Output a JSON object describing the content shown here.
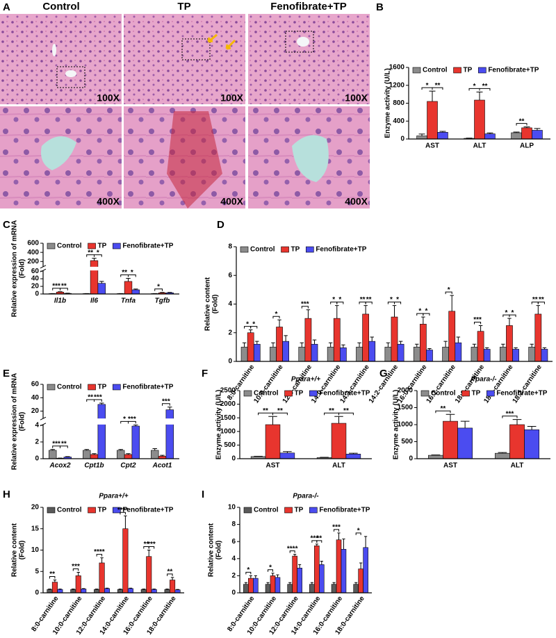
{
  "panel_a": {
    "letter": "A",
    "columns": [
      "Control",
      "TP",
      "Fenofibrate+TP"
    ],
    "magnifications": [
      "100X",
      "400X"
    ]
  },
  "chart_data": [
    {
      "type": "bar",
      "panel": "B",
      "ylabel": [
        "Enzyme activity (U/L)"
      ],
      "categories": [
        "AST",
        "ALT",
        "ALP"
      ],
      "series": [
        {
          "name": "Control",
          "color": "#8c8c8c",
          "values": [
            70,
            15,
            140
          ],
          "errors": [
            40,
            5,
            15
          ]
        },
        {
          "name": "TP",
          "color": "#e8352e",
          "values": [
            840,
            870,
            250
          ],
          "errors": [
            230,
            180,
            20
          ]
        },
        {
          "name": "Fenofibrate+TP",
          "color": "#4b4cf0",
          "values": [
            150,
            115,
            195
          ],
          "errors": [
            20,
            20,
            40
          ]
        }
      ],
      "ylim": [
        0,
        1600
      ],
      "yticks": [
        0,
        400,
        800,
        1200,
        1600
      ],
      "annotations": [
        {
          "text": "*",
          "category": 0,
          "pair": [
            0,
            1
          ]
        },
        {
          "text": "**",
          "category": 0,
          "pair": [
            1,
            2
          ]
        },
        {
          "text": "*",
          "category": 1,
          "pair": [
            0,
            1
          ]
        },
        {
          "text": "**",
          "category": 1,
          "pair": [
            1,
            2
          ]
        },
        {
          "text": "**",
          "category": 2,
          "pair": [
            0,
            1
          ]
        }
      ]
    },
    {
      "type": "bar",
      "panel": "C",
      "ylabel": [
        "Relative expression of mRNA",
        "(Fold)"
      ],
      "italic_categories": true,
      "categories": [
        "Il1b",
        "Il6",
        "Tnfa",
        "Tgfb"
      ],
      "series": [
        {
          "name": "Control",
          "color": "#8c8c8c",
          "values": [
            1,
            1,
            1,
            1
          ],
          "errors": [
            0.2,
            0.2,
            0.2,
            0.2
          ]
        },
        {
          "name": "TP",
          "color": "#e8352e",
          "values": [
            5,
            220,
            33,
            3
          ],
          "errors": [
            1,
            50,
            8,
            1
          ]
        },
        {
          "name": "Fenofibrate+TP",
          "color": "#4b4cf0",
          "values": [
            1.5,
            28,
            11,
            3
          ],
          "errors": [
            0.5,
            5,
            2,
            1
          ]
        }
      ],
      "ylim": [
        0,
        600
      ],
      "ybreak": [
        60,
        100
      ],
      "yticks": [
        0,
        20,
        40,
        60,
        200,
        400,
        600
      ],
      "annotations": [
        {
          "text": "***",
          "category": 0,
          "pair": [
            0,
            1
          ]
        },
        {
          "text": "**",
          "category": 0,
          "pair": [
            1,
            2
          ]
        },
        {
          "text": "**",
          "category": 1,
          "pair": [
            0,
            1
          ]
        },
        {
          "text": "*",
          "category": 1,
          "pair": [
            1,
            2
          ]
        },
        {
          "text": "**",
          "category": 2,
          "pair": [
            0,
            1
          ]
        },
        {
          "text": "*",
          "category": 2,
          "pair": [
            1,
            2
          ]
        },
        {
          "text": "*",
          "category": 3,
          "pair": [
            0,
            1
          ]
        }
      ]
    },
    {
      "type": "bar",
      "panel": "D",
      "ylabel": [
        "Relative content",
        "(Fold)"
      ],
      "categories": [
        "8:0-carnitine",
        "10:0-carnitine",
        "12:0-carnitine",
        "14:0-carnitine",
        "14:1-carnitine",
        "14:2-carnitine",
        "16:0-carnitine",
        "16:1-carnitine",
        "18:0-carnitine",
        "18:1-carnitine",
        "18:2-carnitine"
      ],
      "series": [
        {
          "name": "Control",
          "color": "#8c8c8c",
          "values": [
            1,
            1,
            1,
            1,
            1,
            1,
            1,
            1,
            1,
            1,
            1
          ],
          "errors": [
            0.3,
            0.3,
            0.3,
            0.3,
            0.3,
            0.3,
            0.2,
            0.4,
            0.2,
            0.2,
            0.2
          ]
        },
        {
          "name": "TP",
          "color": "#e8352e",
          "values": [
            2.0,
            2.4,
            3.0,
            3.0,
            3.3,
            3.1,
            2.6,
            3.5,
            2.1,
            2.5,
            3.3
          ],
          "errors": [
            0.2,
            0.5,
            0.6,
            0.9,
            0.6,
            0.8,
            0.5,
            1.1,
            0.4,
            0.5,
            0.6
          ]
        },
        {
          "name": "Fenofibrate+TP",
          "color": "#4b4cf0",
          "values": [
            1.2,
            1.4,
            1.2,
            0.95,
            1.4,
            1.2,
            0.8,
            1.3,
            0.85,
            0.85,
            0.85
          ],
          "errors": [
            0.2,
            0.4,
            0.3,
            0.2,
            0.3,
            0.2,
            0.1,
            0.4,
            0.1,
            0.1,
            0.1
          ]
        }
      ],
      "ylim": [
        0,
        8
      ],
      "yticks": [
        0,
        2,
        4,
        6,
        8
      ],
      "annotations": [
        {
          "text": "*",
          "category": 0,
          "pair": [
            0,
            1
          ]
        },
        {
          "text": "*",
          "category": 0,
          "pair": [
            1,
            2
          ]
        },
        {
          "text": "*",
          "category": 1,
          "pair": [
            0,
            1
          ]
        },
        {
          "text": "***",
          "category": 2,
          "pair": [
            0,
            1
          ]
        },
        {
          "text": "*",
          "category": 3,
          "pair": [
            0,
            1
          ]
        },
        {
          "text": "*",
          "category": 3,
          "pair": [
            1,
            2
          ]
        },
        {
          "text": "**",
          "category": 4,
          "pair": [
            0,
            1
          ]
        },
        {
          "text": "**",
          "category": 4,
          "pair": [
            1,
            2
          ]
        },
        {
          "text": "*",
          "category": 5,
          "pair": [
            0,
            1
          ]
        },
        {
          "text": "*",
          "category": 5,
          "pair": [
            1,
            2
          ]
        },
        {
          "text": "*",
          "category": 6,
          "pair": [
            0,
            1
          ]
        },
        {
          "text": "*",
          "category": 6,
          "pair": [
            1,
            2
          ]
        },
        {
          "text": "*",
          "category": 7,
          "pair": [
            0,
            1
          ]
        },
        {
          "text": "***",
          "category": 8,
          "pair": [
            0,
            1
          ]
        },
        {
          "text": "*",
          "category": 9,
          "pair": [
            0,
            1
          ]
        },
        {
          "text": "*",
          "category": 9,
          "pair": [
            1,
            2
          ]
        },
        {
          "text": "**",
          "category": 10,
          "pair": [
            0,
            1
          ]
        },
        {
          "text": "**",
          "category": 10,
          "pair": [
            1,
            2
          ]
        }
      ]
    },
    {
      "type": "bar",
      "panel": "E",
      "ylabel": [
        "Relative expression of mRNA",
        "(Fold)"
      ],
      "italic_categories": true,
      "categories": [
        "Acox2",
        "Cpt1b",
        "Cpt2",
        "Acot1"
      ],
      "series": [
        {
          "name": "Control",
          "color": "#8c8c8c",
          "values": [
            1,
            1,
            1,
            1
          ],
          "errors": [
            0.1,
            0.1,
            0.1,
            0.2
          ]
        },
        {
          "name": "TP",
          "color": "#e8352e",
          "values": [
            0.05,
            0.5,
            0.5,
            0.3
          ],
          "errors": [
            0.02,
            0.1,
            0.1,
            0.1
          ]
        },
        {
          "name": "Fenofibrate+TP",
          "color": "#4b4cf0",
          "values": [
            0.2,
            30,
            3.9,
            22
          ],
          "errors": [
            0.05,
            2,
            0.4,
            4
          ]
        }
      ],
      "ylim": [
        0,
        60
      ],
      "ybreak": [
        4,
        10
      ],
      "yticks": [
        0,
        2,
        4,
        20,
        40,
        60
      ],
      "annotations": [
        {
          "text": "***",
          "category": 0,
          "pair": [
            0,
            1
          ]
        },
        {
          "text": "**",
          "category": 0,
          "pair": [
            1,
            2
          ]
        },
        {
          "text": "**",
          "category": 1,
          "pair": [
            0,
            1
          ]
        },
        {
          "text": "***",
          "category": 1,
          "pair": [
            1,
            2
          ]
        },
        {
          "text": "*",
          "category": 2,
          "pair": [
            0,
            1
          ]
        },
        {
          "text": "***",
          "category": 2,
          "pair": [
            1,
            2
          ]
        },
        {
          "text": "***",
          "category": 3,
          "pair": [
            1,
            2
          ]
        }
      ]
    },
    {
      "type": "bar",
      "panel": "F",
      "title": "Ppara+/+",
      "ylabel": [
        "Enzyme activity (U/L)"
      ],
      "categories": [
        "AST",
        "ALT"
      ],
      "series": [
        {
          "name": "Control",
          "color": "#8c8c8c",
          "values": [
            80,
            40
          ],
          "errors": [
            10,
            10
          ]
        },
        {
          "name": "TP",
          "color": "#e8352e",
          "values": [
            1250,
            1300
          ],
          "errors": [
            300,
            250
          ]
        },
        {
          "name": "Fenofibrate+TP",
          "color": "#4b4cf0",
          "values": [
            210,
            170
          ],
          "errors": [
            50,
            30
          ]
        }
      ],
      "ylim": [
        0,
        2500
      ],
      "yticks": [
        0,
        500,
        1000,
        1500,
        2000,
        2500
      ],
      "annotations": [
        {
          "text": "**",
          "category": 0,
          "pair": [
            0,
            1
          ]
        },
        {
          "text": "**",
          "category": 0,
          "pair": [
            1,
            2
          ]
        },
        {
          "text": "**",
          "category": 1,
          "pair": [
            0,
            1
          ]
        },
        {
          "text": "**",
          "category": 1,
          "pair": [
            1,
            2
          ]
        }
      ]
    },
    {
      "type": "bar",
      "panel": "G",
      "title": "Ppara-/-",
      "ylabel": [
        "Enzyme activity (U/L)"
      ],
      "categories": [
        "AST",
        "ALT"
      ],
      "series": [
        {
          "name": "Control",
          "color": "#8c8c8c",
          "values": [
            100,
            160
          ],
          "errors": [
            10,
            20
          ]
        },
        {
          "name": "TP",
          "color": "#e8352e",
          "values": [
            1100,
            1000
          ],
          "errors": [
            200,
            150
          ]
        },
        {
          "name": "Fenofibrate+TP",
          "color": "#4b4cf0",
          "values": [
            900,
            850
          ],
          "errors": [
            200,
            100
          ]
        }
      ],
      "ylim": [
        0,
        2000
      ],
      "yticks": [
        0,
        500,
        1000,
        1500,
        2000
      ],
      "annotations": [
        {
          "text": "**",
          "category": 0,
          "pair": [
            0,
            1
          ]
        },
        {
          "text": "***",
          "category": 1,
          "pair": [
            0,
            1
          ]
        }
      ]
    },
    {
      "type": "bar",
      "panel": "H",
      "title": "Ppara+/+",
      "ylabel": [
        "Relative content",
        "(Fold)"
      ],
      "categories": [
        "8:0-carnitine",
        "10:0-carnitine",
        "12:0-carnitine",
        "14:0-carnitine",
        "16:0-carnitine",
        "18:0-carnitine"
      ],
      "series": [
        {
          "name": "Control",
          "color": "#5a5a5a",
          "values": [
            0.8,
            0.8,
            0.8,
            0.8,
            0.8,
            0.8
          ],
          "errors": [
            0.1,
            0.1,
            0.1,
            0.1,
            0.1,
            0.1
          ]
        },
        {
          "name": "TP",
          "color": "#e8352e",
          "values": [
            2.5,
            4,
            7,
            15,
            8.5,
            3
          ],
          "errors": [
            0.5,
            0.8,
            1.2,
            3,
            1.5,
            0.6
          ]
        },
        {
          "name": "Fenofibrate+TP",
          "color": "#4b4cf0",
          "values": [
            0.8,
            0.9,
            1.0,
            1.0,
            0.8,
            0.7
          ],
          "errors": [
            0.1,
            0.1,
            0.1,
            0.1,
            0.1,
            0.1
          ]
        }
      ],
      "ylim": [
        0,
        20
      ],
      "yticks": [
        0,
        5,
        10,
        15,
        20
      ],
      "annotations": [
        {
          "text": "**",
          "category": 0,
          "pair": [
            0,
            1
          ]
        },
        {
          "text": "***",
          "category": 1,
          "pair": [
            0,
            1
          ]
        },
        {
          "text": "****",
          "category": 2,
          "pair": [
            0,
            1
          ]
        },
        {
          "text": "****",
          "category": 3,
          "pair": [
            0,
            1
          ]
        },
        {
          "text": "**",
          "category": 4,
          "pair": [
            0,
            1
          ]
        },
        {
          "text": "***",
          "category": 4,
          "pair": [
            1,
            2
          ]
        },
        {
          "text": "**",
          "category": 5,
          "pair": [
            0,
            1
          ]
        }
      ]
    },
    {
      "type": "bar",
      "panel": "I",
      "title": "Ppara-/-",
      "ylabel": [
        "Relative content",
        "(Fold)"
      ],
      "categories": [
        "8:0-carnitine",
        "10:0-carnitine",
        "12:0-carnitine",
        "14:0-carnitine",
        "16:0-carnitine",
        "18:0-carnitine"
      ],
      "series": [
        {
          "name": "Control",
          "color": "#5a5a5a",
          "values": [
            1,
            1,
            1,
            1,
            1,
            1
          ],
          "errors": [
            0.2,
            0.2,
            0.2,
            0.2,
            0.2,
            0.2
          ]
        },
        {
          "name": "TP",
          "color": "#e8352e",
          "values": [
            1.7,
            2.0,
            4.3,
            5.5,
            6.2,
            2.8
          ],
          "errors": [
            0.3,
            0.3,
            0.2,
            0.2,
            0.8,
            0.7
          ]
        },
        {
          "name": "Fenofibrate+TP",
          "color": "#4b4cf0",
          "values": [
            1.7,
            1.8,
            2.9,
            3.3,
            5.1,
            5.3
          ],
          "errors": [
            0.3,
            0.3,
            0.4,
            0.4,
            1.2,
            1.3
          ]
        }
      ],
      "ylim": [
        0,
        10
      ],
      "yticks": [
        0,
        2,
        4,
        6,
        8,
        10
      ],
      "annotations": [
        {
          "text": "*",
          "category": 0,
          "pair": [
            0,
            1
          ]
        },
        {
          "text": "*",
          "category": 1,
          "pair": [
            0,
            1
          ]
        },
        {
          "text": "****",
          "category": 2,
          "pair": [
            0,
            1
          ]
        },
        {
          "text": "***",
          "category": 3,
          "pair": [
            0,
            1
          ]
        },
        {
          "text": "**",
          "category": 3,
          "pair": [
            1,
            2
          ]
        },
        {
          "text": "***",
          "category": 4,
          "pair": [
            0,
            1
          ]
        },
        {
          "text": "*",
          "category": 5,
          "pair": [
            0,
            1
          ]
        }
      ]
    }
  ]
}
